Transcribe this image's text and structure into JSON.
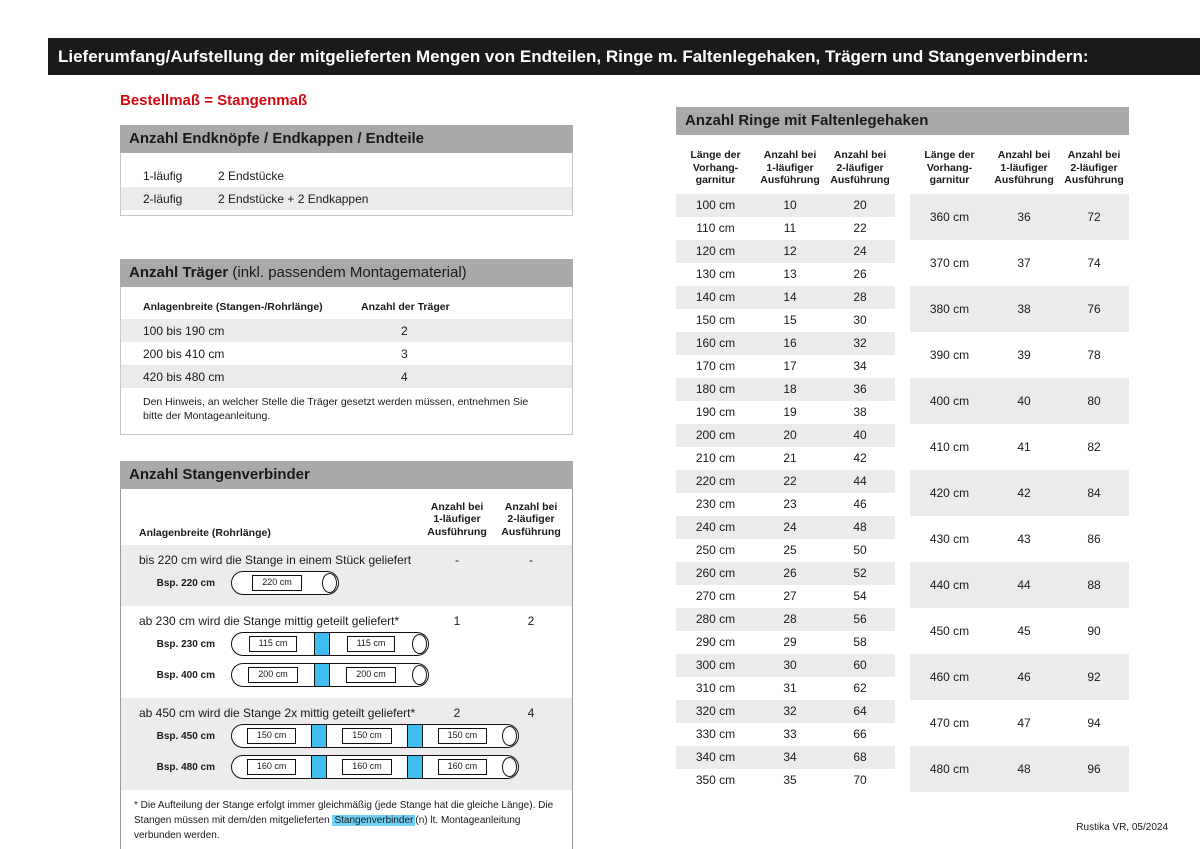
{
  "colors": {
    "title_bar_bg": "#1a1a1a",
    "section_header_bg": "#a9a9a9",
    "accent_red": "#d20a11",
    "row_shade": "#ebebeb",
    "connector_blue": "#3fbdee",
    "highlight_blue": "#70cff5"
  },
  "page": {
    "title": "Lieferumfang/Aufstellung der mitgelieferten Mengen von Endteilen, Ringe m. Faltenlegehaken, Trägern und Stangenverbindern:",
    "order_note": "Bestellmaß = Stangenmaß",
    "credit": "Rustika VR, 05/2024"
  },
  "endteile": {
    "header": "Anzahl Endknöpfe / Endkappen / Endteile",
    "rows": [
      {
        "label": "1-läufig",
        "value": "2 Endstücke"
      },
      {
        "label": "2-läufig",
        "value": "2 Endstücke + 2 Endkappen"
      }
    ]
  },
  "traeger": {
    "header_bold": "Anzahl Träger",
    "header_normal": " (inkl. passendem Montagematerial)",
    "col_width": "Anlagenbreite (Stangen-/Rohrlänge)",
    "col_count": "Anzahl der Träger",
    "rows": [
      {
        "range": "100 bis 190 cm",
        "count": "2"
      },
      {
        "range": "200 bis 410 cm",
        "count": "3"
      },
      {
        "range": "420 bis 480 cm",
        "count": "4"
      }
    ],
    "note": "Den Hinweis, an welcher Stelle die Träger gesetzt werden müssen, entnehmen Sie bitte der Montageanleitung."
  },
  "verbinder": {
    "header": "Anzahl Stangenverbinder",
    "col_width": "Anlagenbreite (Rohrlänge)",
    "col_one": "Anzahl bei\n1-läufiger\nAusführung",
    "col_two": "Anzahl bei\n2-läufiger\nAusführung",
    "groups": [
      {
        "text": "bis 220 cm wird die Stange in einem Stück geliefert",
        "count_one": "-",
        "count_two": "-",
        "examples": [
          {
            "label": "Bsp. 220 cm",
            "segments": [
              "220 cm"
            ]
          }
        ]
      },
      {
        "text": "ab 230 cm wird die Stange mittig geteilt geliefert*",
        "count_one": "1",
        "count_two": "2",
        "examples": [
          {
            "label": "Bsp. 230 cm",
            "segments": [
              "115 cm",
              "115 cm"
            ]
          },
          {
            "label": "Bsp. 400 cm",
            "segments": [
              "200 cm",
              "200 cm"
            ]
          }
        ]
      },
      {
        "text": "ab 450 cm wird die Stange 2x mittig geteilt geliefert*",
        "count_one": "2",
        "count_two": "4",
        "examples": [
          {
            "label": "Bsp. 450 cm",
            "segments": [
              "150 cm",
              "150 cm",
              "150 cm"
            ]
          },
          {
            "label": "Bsp. 480 cm",
            "segments": [
              "160 cm",
              "160 cm",
              "160 cm"
            ]
          }
        ]
      }
    ],
    "footnote_pre": "* Die Aufteilung der Stange erfolgt immer gleichmäßig (jede Stange hat die gleiche Länge). Die Stangen müssen mit dem/den mitgelieferten ",
    "footnote_highlight": "Stangenverbinder",
    "footnote_post": "(n) lt. Montageanleitung verbunden werden."
  },
  "ringe": {
    "header": "Anzahl Ringe mit Faltenlegehaken",
    "col_length": "Länge der\nVorhang-\ngarnitur",
    "col_one": "Anzahl bei\n1-läufiger\nAusführung",
    "col_two": "Anzahl bei\n2-läufiger\nAusführung",
    "left": [
      {
        "len": "100 cm",
        "one": "10",
        "two": "20"
      },
      {
        "len": "110 cm",
        "one": "11",
        "two": "22"
      },
      {
        "len": "120 cm",
        "one": "12",
        "two": "24"
      },
      {
        "len": "130 cm",
        "one": "13",
        "two": "26"
      },
      {
        "len": "140 cm",
        "one": "14",
        "two": "28"
      },
      {
        "len": "150 cm",
        "one": "15",
        "two": "30"
      },
      {
        "len": "160 cm",
        "one": "16",
        "two": "32"
      },
      {
        "len": "170 cm",
        "one": "17",
        "two": "34"
      },
      {
        "len": "180 cm",
        "one": "18",
        "two": "36"
      },
      {
        "len": "190 cm",
        "one": "19",
        "two": "38"
      },
      {
        "len": "200 cm",
        "one": "20",
        "two": "40"
      },
      {
        "len": "210 cm",
        "one": "21",
        "two": "42"
      },
      {
        "len": "220 cm",
        "one": "22",
        "two": "44"
      },
      {
        "len": "230 cm",
        "one": "23",
        "two": "46"
      },
      {
        "len": "240 cm",
        "one": "24",
        "two": "48"
      },
      {
        "len": "250 cm",
        "one": "25",
        "two": "50"
      },
      {
        "len": "260 cm",
        "one": "26",
        "two": "52"
      },
      {
        "len": "270 cm",
        "one": "27",
        "two": "54"
      },
      {
        "len": "280 cm",
        "one": "28",
        "two": "56"
      },
      {
        "len": "290 cm",
        "one": "29",
        "two": "58"
      },
      {
        "len": "300 cm",
        "one": "30",
        "two": "60"
      },
      {
        "len": "310 cm",
        "one": "31",
        "two": "62"
      },
      {
        "len": "320 cm",
        "one": "32",
        "two": "64"
      },
      {
        "len": "330 cm",
        "one": "33",
        "two": "66"
      },
      {
        "len": "340 cm",
        "one": "34",
        "two": "68"
      },
      {
        "len": "350 cm",
        "one": "35",
        "two": "70"
      }
    ],
    "right": [
      {
        "len": "360 cm",
        "one": "36",
        "two": "72"
      },
      {
        "len": "370 cm",
        "one": "37",
        "two": "74"
      },
      {
        "len": "380 cm",
        "one": "38",
        "two": "76"
      },
      {
        "len": "390 cm",
        "one": "39",
        "two": "78"
      },
      {
        "len": "400 cm",
        "one": "40",
        "two": "80"
      },
      {
        "len": "410 cm",
        "one": "41",
        "two": "82"
      },
      {
        "len": "420 cm",
        "one": "42",
        "two": "84"
      },
      {
        "len": "430 cm",
        "one": "43",
        "two": "86"
      },
      {
        "len": "440 cm",
        "one": "44",
        "two": "88"
      },
      {
        "len": "450 cm",
        "one": "45",
        "two": "90"
      },
      {
        "len": "460 cm",
        "one": "46",
        "two": "92"
      },
      {
        "len": "470 cm",
        "one": "47",
        "two": "94"
      },
      {
        "len": "480 cm",
        "one": "48",
        "two": "96"
      }
    ]
  }
}
